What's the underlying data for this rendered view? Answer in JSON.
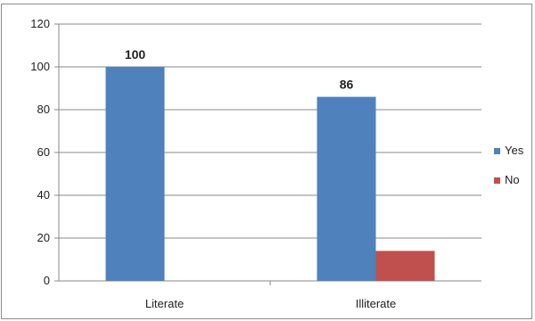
{
  "chart_data": {
    "type": "bar",
    "categories": [
      "Literate",
      "Illiterate"
    ],
    "series": [
      {
        "name": "Yes",
        "values": [
          100,
          86
        ],
        "color": "#4f81bd",
        "labels": [
          "100",
          "86"
        ]
      },
      {
        "name": "No",
        "values": [
          0,
          14
        ],
        "color": "#c0504d",
        "labels": [
          "",
          ""
        ]
      }
    ],
    "ylim": [
      0,
      120
    ],
    "yticks": [
      0,
      20,
      40,
      60,
      80,
      100,
      120
    ],
    "grid": true,
    "legend": "right",
    "title": "",
    "xlabel": "",
    "ylabel": ""
  }
}
